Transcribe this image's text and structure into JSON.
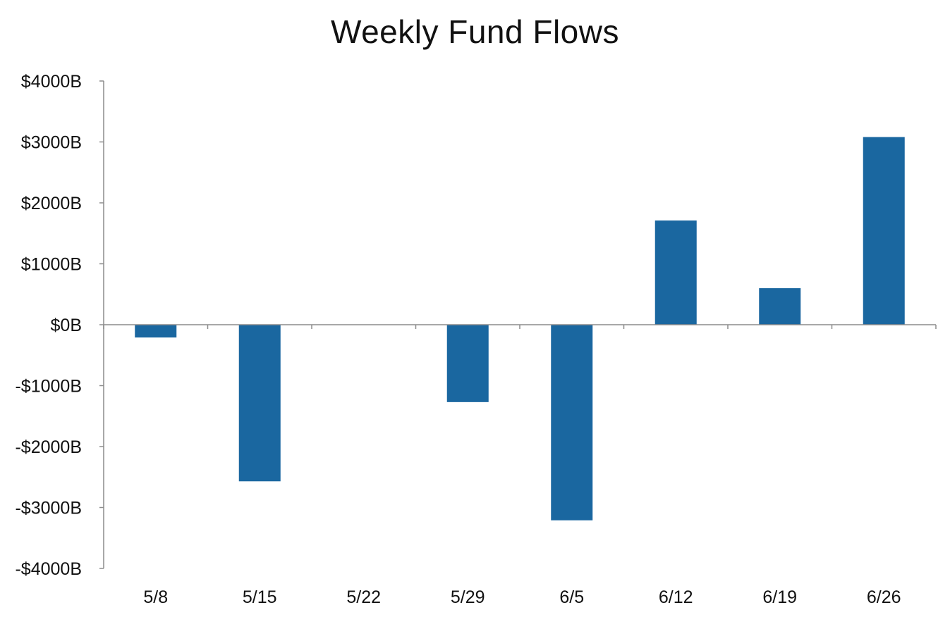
{
  "chart_data": {
    "type": "bar",
    "title": "Weekly Fund Flows",
    "xlabel": "",
    "ylabel": "",
    "categories": [
      "5/8",
      "5/15",
      "5/22",
      "5/29",
      "6/5",
      "6/12",
      "6/19",
      "6/26"
    ],
    "values": [
      -210,
      -2570,
      5,
      -1270,
      -3210,
      1710,
      600,
      3080
    ],
    "ylim": [
      -4000,
      4000
    ],
    "yticks": [
      4000,
      3000,
      2000,
      1000,
      0,
      -1000,
      -2000,
      -3000,
      -4000
    ],
    "ytick_labels": [
      "$4000B",
      "$3000B",
      "$2000B",
      "$1000B",
      "$0B",
      "-$1000B",
      "-$2000B",
      "-$3000B",
      "-$4000B"
    ],
    "grid": false,
    "legend": "none",
    "colors": {
      "bar": "#1a67a0",
      "axis": "#8c8c8c",
      "text": "#111111"
    }
  }
}
